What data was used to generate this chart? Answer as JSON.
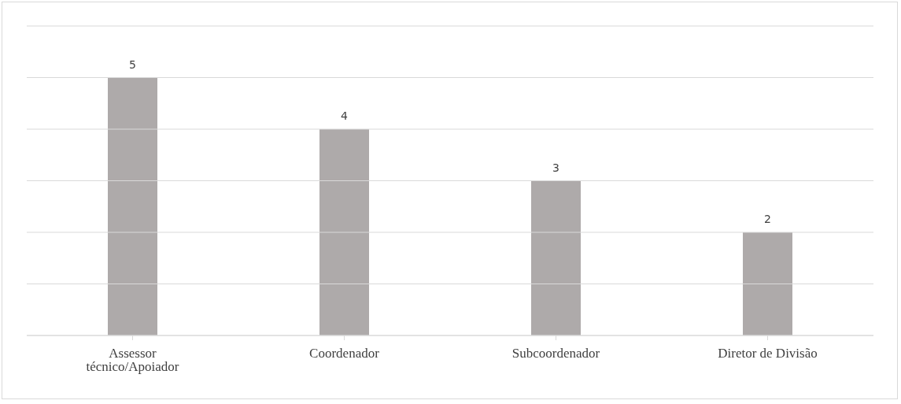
{
  "chart_data": {
    "type": "bar",
    "categories": [
      "Assessor técnico/Apoiador",
      "Coordenador",
      "Subcoordenador",
      "Diretor de Divisão"
    ],
    "values": [
      5,
      4,
      3,
      2
    ],
    "color": "#aeaaaa",
    "ylim": [
      0,
      6
    ],
    "yticks": [
      {
        "value": 0,
        "label": null
      },
      {
        "value": 1,
        "label": null
      },
      {
        "value": 2,
        "label": null
      },
      {
        "value": 3,
        "label": null
      },
      {
        "value": 4,
        "label": null
      },
      {
        "value": 5,
        "label": null
      },
      {
        "value": 6,
        "label": null
      }
    ],
    "grid": "y",
    "data_labels": true,
    "tick_labels": "x"
  }
}
